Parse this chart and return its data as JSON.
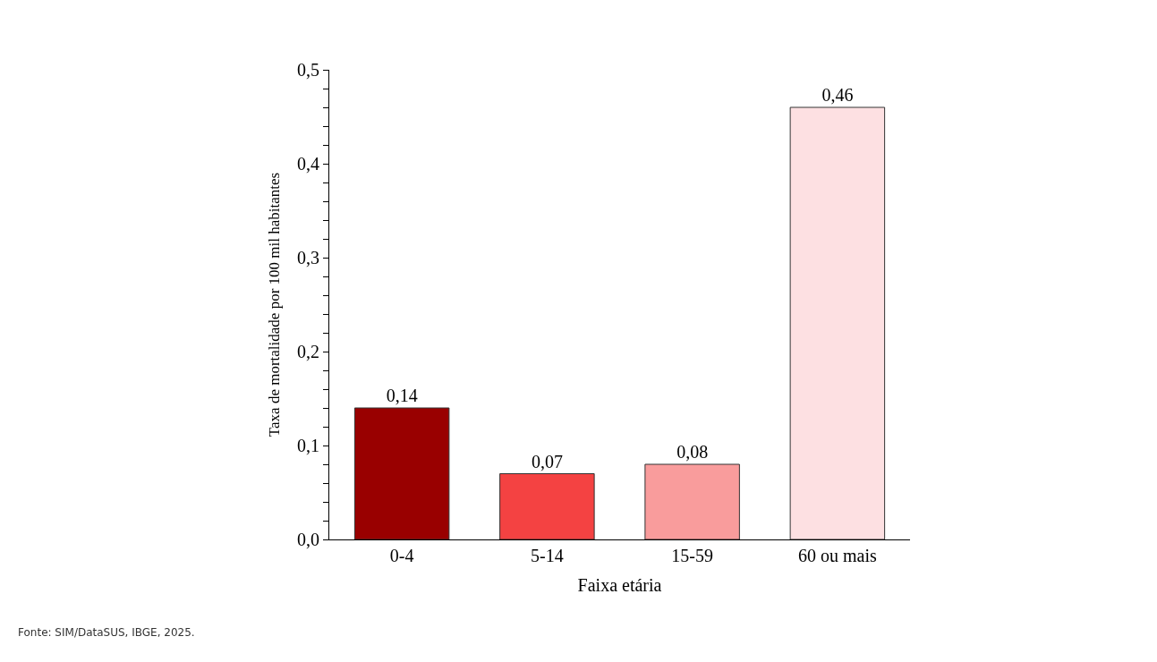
{
  "chart_data": {
    "type": "bar",
    "categories": [
      "0-4",
      "5-14",
      "15-59",
      "60 ou mais"
    ],
    "values": [
      0.14,
      0.07,
      0.08,
      0.46
    ],
    "value_labels": [
      "0,14",
      "0,07",
      "0,08",
      "0,46"
    ],
    "colors": [
      "#990000",
      "#f44242",
      "#f99c9c",
      "#fde0e2"
    ],
    "xlabel": "Faixa etária",
    "ylabel": "Taxa de mortalidade por 100 mil habitantes",
    "ylim": [
      0,
      0.5
    ],
    "yticks": [
      {
        "value": 0,
        "label": "0,0"
      },
      {
        "value": 0.02,
        "label": null
      },
      {
        "value": 0.04,
        "label": null
      },
      {
        "value": 0.06,
        "label": null
      },
      {
        "value": 0.08,
        "label": null
      },
      {
        "value": 0.1,
        "label": "0,1"
      },
      {
        "value": 0.12,
        "label": null
      },
      {
        "value": 0.14,
        "label": null
      },
      {
        "value": 0.16,
        "label": null
      },
      {
        "value": 0.18,
        "label": null
      },
      {
        "value": 0.2,
        "label": "0,2"
      },
      {
        "value": 0.22,
        "label": null
      },
      {
        "value": 0.24,
        "label": null
      },
      {
        "value": 0.26,
        "label": null
      },
      {
        "value": 0.28,
        "label": null
      },
      {
        "value": 0.3,
        "label": "0,3"
      },
      {
        "value": 0.32,
        "label": null
      },
      {
        "value": 0.34,
        "label": null
      },
      {
        "value": 0.36,
        "label": null
      },
      {
        "value": 0.38,
        "label": null
      },
      {
        "value": 0.4,
        "label": "0,4"
      },
      {
        "value": 0.42,
        "label": null
      },
      {
        "value": 0.44,
        "label": null
      },
      {
        "value": 0.46,
        "label": null
      },
      {
        "value": 0.48,
        "label": null
      },
      {
        "value": 0.5,
        "label": "0,5"
      }
    ],
    "annotations": [
      "Fonte: SIM/DataSUS, IBGE, 2025."
    ]
  }
}
